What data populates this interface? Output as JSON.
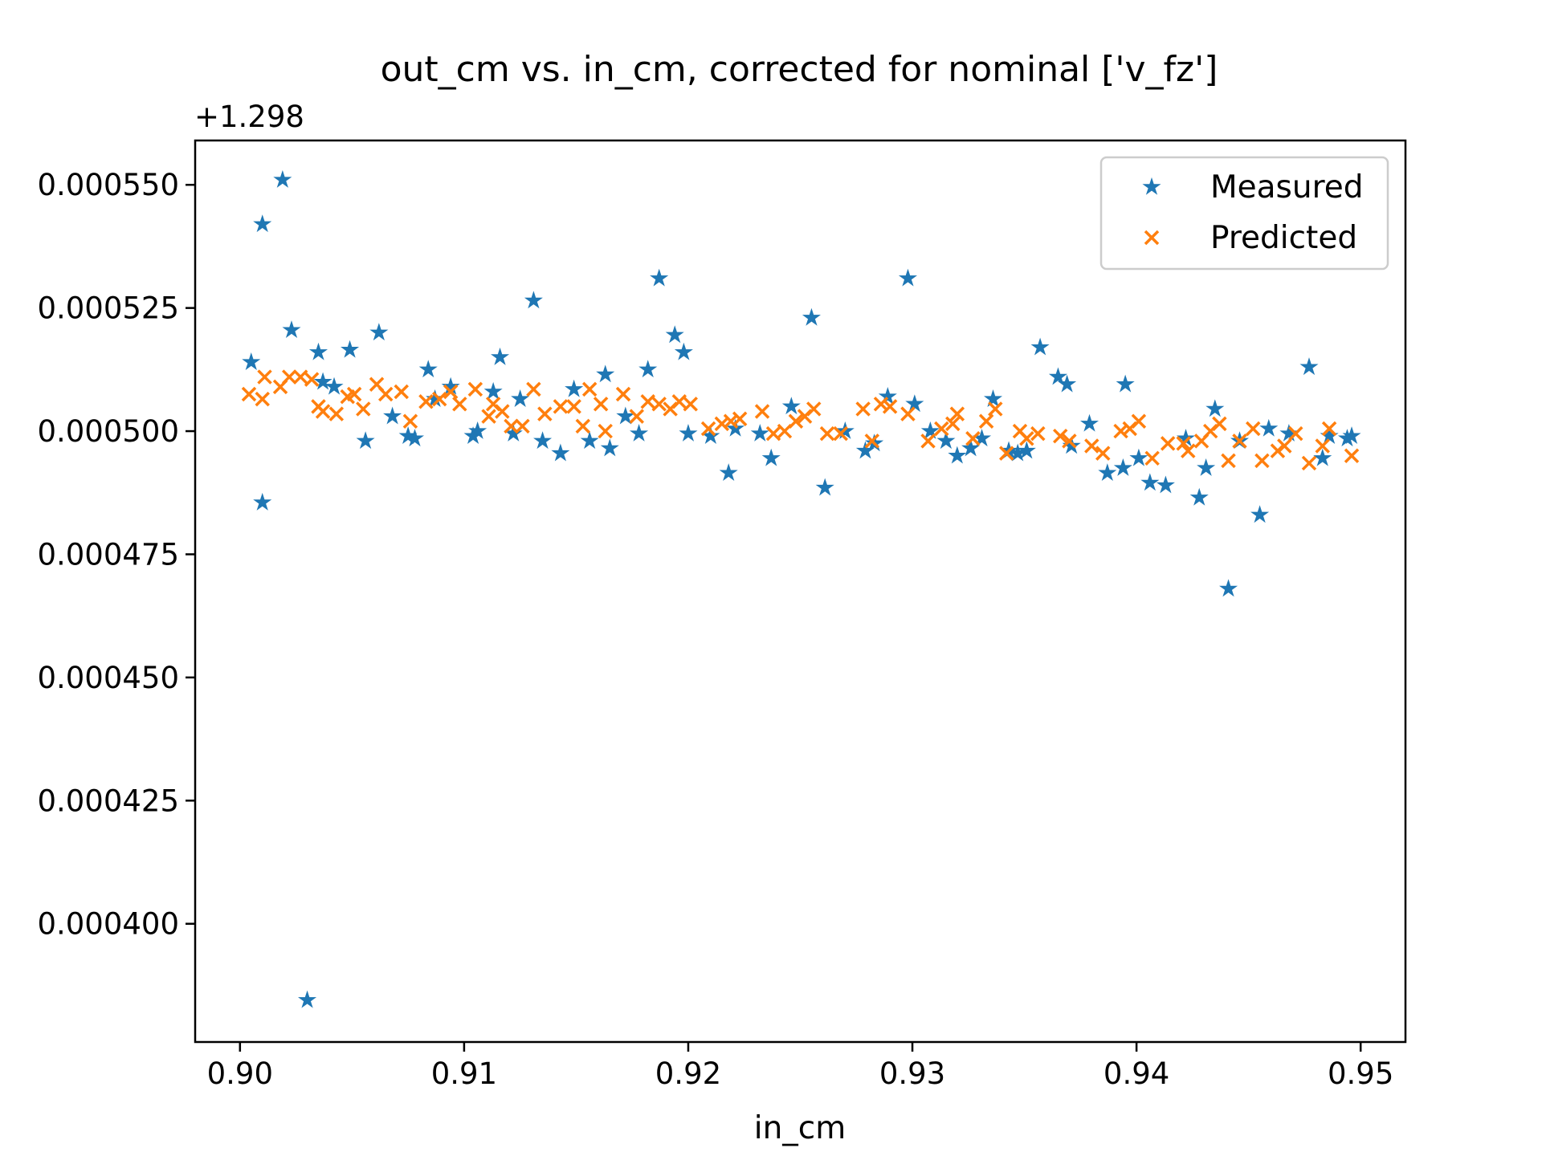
{
  "chart_data": {
    "type": "scatter",
    "title": "out_cm vs. in_cm, corrected for nominal ['v_fz']",
    "xlabel": "in_cm",
    "ylabel": "",
    "y_offset_label": "+1.298",
    "xlim": [
      0.898,
      0.952
    ],
    "ylim": [
      0.000376,
      0.000559
    ],
    "x_ticks": [
      0.9,
      0.91,
      0.92,
      0.93,
      0.94,
      0.95
    ],
    "x_tick_labels": [
      "0.90",
      "0.91",
      "0.92",
      "0.93",
      "0.94",
      "0.95"
    ],
    "y_ticks": [
      0.0004,
      0.000425,
      0.00045,
      0.000475,
      0.0005,
      0.000525,
      0.00055
    ],
    "y_tick_labels": [
      "0.000400",
      "0.000425",
      "0.000450",
      "0.000475",
      "0.000500",
      "0.000525",
      "0.000550"
    ],
    "grid": false,
    "legend_position": "top-right",
    "series": [
      {
        "name": "Measured",
        "marker": "star",
        "color": "#1f77b4",
        "points": [
          [
            0.9005,
            0.000514
          ],
          [
            0.901,
            0.000542
          ],
          [
            0.901,
            0.0004855
          ],
          [
            0.9019,
            0.000551
          ],
          [
            0.9023,
            0.0005205
          ],
          [
            0.903,
            0.0003845
          ],
          [
            0.9035,
            0.000516
          ],
          [
            0.9037,
            0.00051
          ],
          [
            0.9042,
            0.000509
          ],
          [
            0.9049,
            0.0005165
          ],
          [
            0.9056,
            0.000498
          ],
          [
            0.9062,
            0.00052
          ],
          [
            0.9068,
            0.000503
          ],
          [
            0.9075,
            0.000499
          ],
          [
            0.9078,
            0.0004985
          ],
          [
            0.9084,
            0.0005125
          ],
          [
            0.9087,
            0.0005065
          ],
          [
            0.9094,
            0.000509
          ],
          [
            0.9104,
            0.000499
          ],
          [
            0.9106,
            0.0005
          ],
          [
            0.9113,
            0.000508
          ],
          [
            0.9116,
            0.000515
          ],
          [
            0.9122,
            0.0004995
          ],
          [
            0.9125,
            0.0005065
          ],
          [
            0.9131,
            0.0005265
          ],
          [
            0.9135,
            0.000498
          ],
          [
            0.9143,
            0.0004955
          ],
          [
            0.9149,
            0.0005085
          ],
          [
            0.9156,
            0.000498
          ],
          [
            0.9163,
            0.0005115
          ],
          [
            0.9165,
            0.0004965
          ],
          [
            0.9172,
            0.000503
          ],
          [
            0.9178,
            0.0004995
          ],
          [
            0.9182,
            0.0005125
          ],
          [
            0.9187,
            0.000531
          ],
          [
            0.9194,
            0.0005195
          ],
          [
            0.9198,
            0.000516
          ],
          [
            0.92,
            0.0004995
          ],
          [
            0.921,
            0.000499
          ],
          [
            0.9218,
            0.0004915
          ],
          [
            0.9221,
            0.0005005
          ],
          [
            0.9232,
            0.0004995
          ],
          [
            0.9237,
            0.0004945
          ],
          [
            0.9246,
            0.000505
          ],
          [
            0.9255,
            0.000523
          ],
          [
            0.9261,
            0.0004885
          ],
          [
            0.927,
            0.0005
          ],
          [
            0.9279,
            0.000496
          ],
          [
            0.9283,
            0.0004975
          ],
          [
            0.9289,
            0.000507
          ],
          [
            0.9298,
            0.000531
          ],
          [
            0.9301,
            0.0005055
          ],
          [
            0.9308,
            0.0005
          ],
          [
            0.9315,
            0.000498
          ],
          [
            0.932,
            0.000495
          ],
          [
            0.9326,
            0.0004965
          ],
          [
            0.9331,
            0.0004985
          ],
          [
            0.9336,
            0.0005065
          ],
          [
            0.9343,
            0.000496
          ],
          [
            0.9347,
            0.0004955
          ],
          [
            0.9351,
            0.000496
          ],
          [
            0.9357,
            0.000517
          ],
          [
            0.9365,
            0.000511
          ],
          [
            0.9369,
            0.0005095
          ],
          [
            0.9371,
            0.000497
          ],
          [
            0.9379,
            0.0005015
          ],
          [
            0.9387,
            0.0004915
          ],
          [
            0.9394,
            0.0004925
          ],
          [
            0.9395,
            0.0005095
          ],
          [
            0.9401,
            0.0004945
          ],
          [
            0.9406,
            0.0004895
          ],
          [
            0.9413,
            0.000489
          ],
          [
            0.9422,
            0.0004985
          ],
          [
            0.9428,
            0.0004865
          ],
          [
            0.9431,
            0.0004925
          ],
          [
            0.9435,
            0.0005045
          ],
          [
            0.9441,
            0.000468
          ],
          [
            0.9446,
            0.000498
          ],
          [
            0.9455,
            0.000483
          ],
          [
            0.9459,
            0.0005005
          ],
          [
            0.9468,
            0.0004995
          ],
          [
            0.9477,
            0.000513
          ],
          [
            0.9483,
            0.0004945
          ],
          [
            0.9486,
            0.000499
          ],
          [
            0.9494,
            0.0004985
          ],
          [
            0.9496,
            0.000499
          ]
        ]
      },
      {
        "name": "Predicted",
        "marker": "x",
        "color": "#ff7f0e",
        "points": [
          [
            0.9004,
            0.0005075
          ],
          [
            0.901,
            0.0005065
          ],
          [
            0.9011,
            0.000511
          ],
          [
            0.9018,
            0.000509
          ],
          [
            0.9022,
            0.000511
          ],
          [
            0.9027,
            0.000511
          ],
          [
            0.9032,
            0.0005105
          ],
          [
            0.9035,
            0.000505
          ],
          [
            0.9037,
            0.000504
          ],
          [
            0.9043,
            0.0005035
          ],
          [
            0.9048,
            0.000507
          ],
          [
            0.9051,
            0.0005075
          ],
          [
            0.9055,
            0.0005045
          ],
          [
            0.9061,
            0.0005095
          ],
          [
            0.9065,
            0.0005075
          ],
          [
            0.9072,
            0.000508
          ],
          [
            0.9076,
            0.000502
          ],
          [
            0.9083,
            0.000506
          ],
          [
            0.9089,
            0.0005065
          ],
          [
            0.9094,
            0.000508
          ],
          [
            0.9098,
            0.0005055
          ],
          [
            0.9105,
            0.0005085
          ],
          [
            0.9111,
            0.000503
          ],
          [
            0.9113,
            0.0005055
          ],
          [
            0.9117,
            0.000504
          ],
          [
            0.9121,
            0.000501
          ],
          [
            0.9126,
            0.000501
          ],
          [
            0.9131,
            0.0005085
          ],
          [
            0.9136,
            0.0005035
          ],
          [
            0.9143,
            0.000505
          ],
          [
            0.9149,
            0.000505
          ],
          [
            0.9153,
            0.000501
          ],
          [
            0.9156,
            0.0005085
          ],
          [
            0.9161,
            0.0005055
          ],
          [
            0.9163,
            0.0005
          ],
          [
            0.9171,
            0.0005075
          ],
          [
            0.9177,
            0.000503
          ],
          [
            0.9182,
            0.000506
          ],
          [
            0.9187,
            0.0005055
          ],
          [
            0.9192,
            0.0005045
          ],
          [
            0.9196,
            0.000506
          ],
          [
            0.9201,
            0.0005055
          ],
          [
            0.9209,
            0.0005005
          ],
          [
            0.9215,
            0.0005015
          ],
          [
            0.9219,
            0.000502
          ],
          [
            0.9223,
            0.0005025
          ],
          [
            0.9233,
            0.000504
          ],
          [
            0.9238,
            0.0004995
          ],
          [
            0.9243,
            0.0005
          ],
          [
            0.9248,
            0.000502
          ],
          [
            0.9252,
            0.000503
          ],
          [
            0.9256,
            0.0005045
          ],
          [
            0.9262,
            0.0004995
          ],
          [
            0.9268,
            0.0004995
          ],
          [
            0.9278,
            0.0005045
          ],
          [
            0.9282,
            0.000498
          ],
          [
            0.9286,
            0.0005055
          ],
          [
            0.929,
            0.000505
          ],
          [
            0.9298,
            0.0005035
          ],
          [
            0.9307,
            0.000498
          ],
          [
            0.9313,
            0.0005005
          ],
          [
            0.9318,
            0.0005015
          ],
          [
            0.932,
            0.0005035
          ],
          [
            0.9327,
            0.0004985
          ],
          [
            0.9333,
            0.000502
          ],
          [
            0.9337,
            0.0005045
          ],
          [
            0.9342,
            0.0004955
          ],
          [
            0.9348,
            0.0005
          ],
          [
            0.9351,
            0.0004985
          ],
          [
            0.9356,
            0.0004995
          ],
          [
            0.9366,
            0.000499
          ],
          [
            0.937,
            0.000498
          ],
          [
            0.938,
            0.000497
          ],
          [
            0.9385,
            0.0004955
          ],
          [
            0.9393,
            0.0005
          ],
          [
            0.9397,
            0.0005005
          ],
          [
            0.9401,
            0.000502
          ],
          [
            0.9407,
            0.0004945
          ],
          [
            0.9414,
            0.0004975
          ],
          [
            0.9421,
            0.0004975
          ],
          [
            0.9423,
            0.000496
          ],
          [
            0.9429,
            0.000498
          ],
          [
            0.9433,
            0.0005
          ],
          [
            0.9437,
            0.0005015
          ],
          [
            0.9441,
            0.000494
          ],
          [
            0.9446,
            0.000498
          ],
          [
            0.9452,
            0.0005005
          ],
          [
            0.9456,
            0.000494
          ],
          [
            0.9463,
            0.000496
          ],
          [
            0.9466,
            0.000497
          ],
          [
            0.9471,
            0.0004995
          ],
          [
            0.9477,
            0.0004935
          ],
          [
            0.9483,
            0.000497
          ],
          [
            0.9486,
            0.0005005
          ],
          [
            0.9496,
            0.000495
          ]
        ]
      }
    ]
  }
}
